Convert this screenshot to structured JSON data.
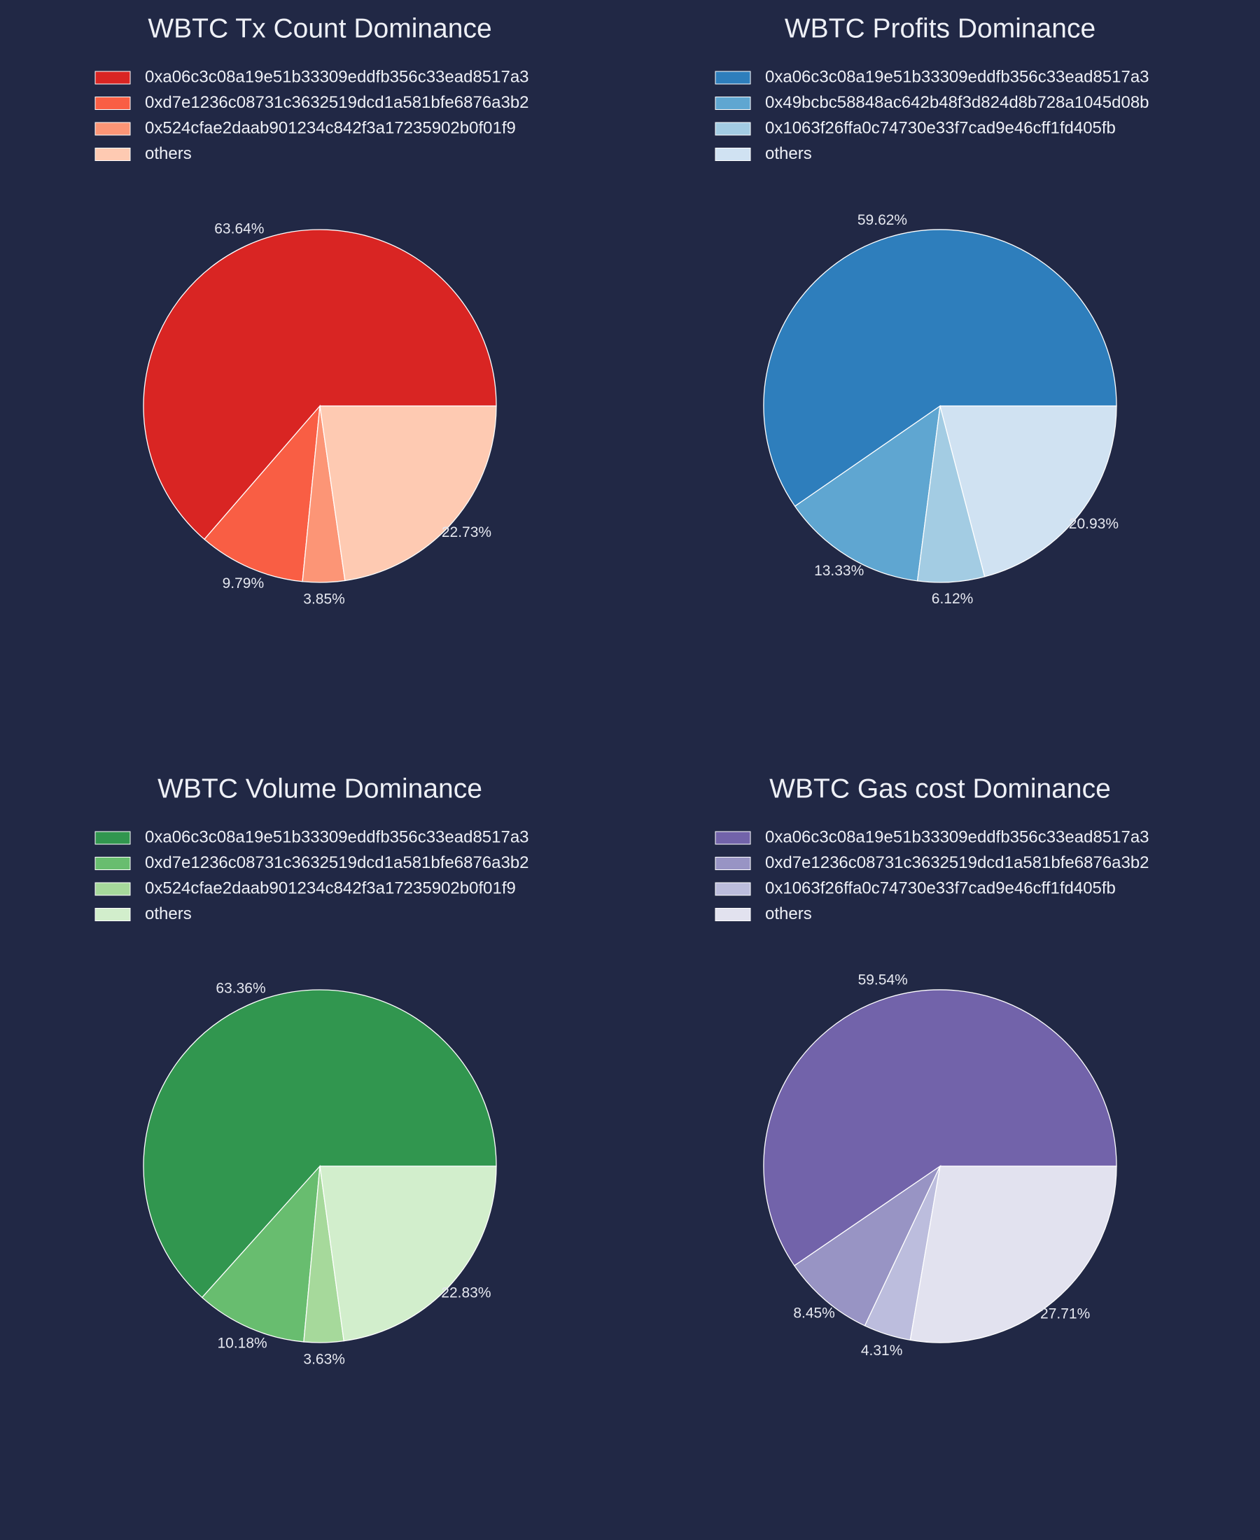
{
  "chart_data": [
    {
      "type": "pie",
      "title": "WBTC Tx Count Dominance",
      "labels": [
        "0xa06c3c08a19e51b33309eddfb356c33ead8517a3",
        "0xd7e1236c08731c3632519dcd1a581bfe6876a3b2",
        "0x524cfae2daab901234c842f3a17235902b0f01f9",
        "others"
      ],
      "values": [
        63.64,
        9.79,
        3.85,
        22.73
      ],
      "value_labels": [
        "63.64%",
        "9.79%",
        "3.85%",
        "22.73%"
      ],
      "colors": [
        "#d92523",
        "#f95e44",
        "#fc9576",
        "#fecab2"
      ],
      "legend_position": "top"
    },
    {
      "type": "pie",
      "title": "WBTC Profits Dominance",
      "labels": [
        "0xa06c3c08a19e51b33309eddfb356c33ead8517a3",
        "0x49bcbc58848ac642b48f3d824d8b728a1045d08b",
        "0x1063f26ffa0c74730e33f7cad9e46cff1fd405fb",
        "others"
      ],
      "values": [
        59.62,
        13.33,
        6.12,
        20.93
      ],
      "value_labels": [
        "59.62%",
        "13.33%",
        "6.12%",
        "20.93%"
      ],
      "colors": [
        "#2e7ebc",
        "#5fa6d1",
        "#a3cce3",
        "#d0e2f2"
      ],
      "legend_position": "top"
    },
    {
      "type": "pie",
      "title": "WBTC Volume Dominance",
      "labels": [
        "0xa06c3c08a19e51b33309eddfb356c33ead8517a3",
        "0xd7e1236c08731c3632519dcd1a581bfe6876a3b2",
        "0x524cfae2daab901234c842f3a17235902b0f01f9",
        "others"
      ],
      "values": [
        63.36,
        10.18,
        3.63,
        22.83
      ],
      "value_labels": [
        "63.36%",
        "10.18%",
        "3.63%",
        "22.83%"
      ],
      "colors": [
        "#31964f",
        "#68bd6f",
        "#a6d99b",
        "#d2eecc"
      ],
      "legend_position": "top"
    },
    {
      "type": "pie",
      "title": "WBTC Gas cost Dominance",
      "labels": [
        "0xa06c3c08a19e51b33309eddfb356c33ead8517a3",
        "0xd7e1236c08731c3632519dcd1a581bfe6876a3b2",
        "0x1063f26ffa0c74730e33f7cad9e46cff1fd405fb",
        "others"
      ],
      "values": [
        59.54,
        8.45,
        4.31,
        27.71
      ],
      "value_labels": [
        "59.54%",
        "8.45%",
        "4.31%",
        "27.71%"
      ],
      "colors": [
        "#7263aa",
        "#9894c4",
        "#bcbddd",
        "#e2e2ef"
      ],
      "legend_position": "top"
    }
  ],
  "colors": {
    "background": "#212845",
    "text": "#eef0f6",
    "slice_edge": "#ffffff"
  }
}
